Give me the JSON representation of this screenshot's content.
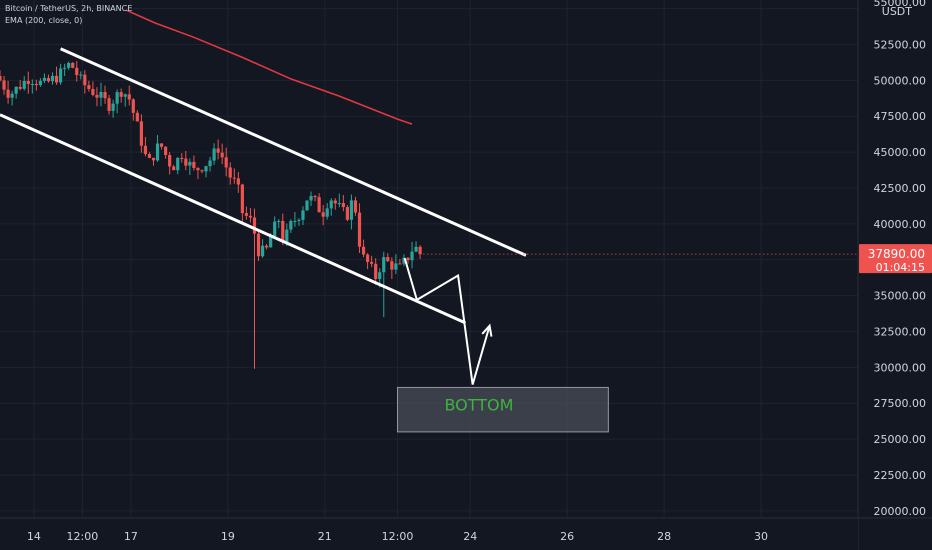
{
  "header": {
    "symbol_line": "Bitcoin / TetherUS, 2h, BINANCE",
    "indicator_line": "EMA (200, close, 0)"
  },
  "price_scale": {
    "currency": "USDT",
    "current_price": "37890.00",
    "countdown": "01:04:15"
  },
  "annotation": {
    "label": "BOTTOM"
  },
  "colors": {
    "background": "#131722",
    "grid": "#1f2330",
    "up": "#26a69a",
    "down": "#ef5350",
    "ema": "#e0393e",
    "lines": "#ffffff",
    "bottom_box": "#4a4e58",
    "bottom_text": "#3fb23f",
    "price_tag": "#ef5350"
  },
  "chart_data": {
    "type": "candlestick",
    "title": "Bitcoin / TetherUS, 2h, BINANCE",
    "y_ticks": [
      55000,
      52500,
      50000,
      47500,
      45000,
      42500,
      40000,
      37500,
      35000,
      32500,
      30000,
      27500,
      25000,
      22500,
      20000
    ],
    "y_tick_labels": [
      "55000.00",
      "52500.00",
      "50000.00",
      "47500.00",
      "45000.00",
      "42500.00",
      "40000.00",
      "37500.00",
      "35000.00",
      "32500.00",
      "30000.00",
      "27500.00",
      "25000.00",
      "22500.00",
      "20000.00"
    ],
    "ylim": [
      19500,
      55600
    ],
    "x_ticks": [
      {
        "day": 14.0,
        "label": "14"
      },
      {
        "day": 15.0,
        "label": "12:00"
      },
      {
        "day": 16.0,
        "label": "17"
      },
      {
        "day": 18.0,
        "label": "19"
      },
      {
        "day": 20.0,
        "label": "21"
      },
      {
        "day": 21.5,
        "label": "12:00"
      },
      {
        "day": 23.0,
        "label": "24"
      },
      {
        "day": 25.0,
        "label": "26"
      },
      {
        "day": 27.0,
        "label": "28"
      },
      {
        "day": 29.0,
        "label": "30"
      }
    ],
    "xlim": [
      13.3,
      31.0
    ],
    "candle_days": [
      13.3,
      21.95
    ],
    "candle_anchors": [
      [
        13.3,
        50000
      ],
      [
        13.5,
        49000
      ],
      [
        13.9,
        50200
      ],
      [
        14.2,
        49700
      ],
      [
        14.5,
        50300
      ],
      [
        14.75,
        51200
      ],
      [
        15.0,
        49800
      ],
      [
        15.3,
        49000
      ],
      [
        15.55,
        48300
      ],
      [
        15.8,
        49300
      ],
      [
        15.95,
        48900
      ],
      [
        16.1,
        47200
      ],
      [
        16.35,
        44100
      ],
      [
        16.6,
        45600
      ],
      [
        16.85,
        43900
      ],
      [
        17.05,
        44900
      ],
      [
        17.3,
        43700
      ],
      [
        17.6,
        44300
      ],
      [
        17.8,
        45300
      ],
      [
        17.95,
        44100
      ],
      [
        18.05,
        43300
      ],
      [
        18.2,
        42600
      ],
      [
        18.3,
        40800
      ],
      [
        18.5,
        40100
      ],
      [
        18.65,
        37900
      ],
      [
        18.8,
        38200
      ],
      [
        18.9,
        39300
      ],
      [
        19.05,
        40300
      ],
      [
        19.15,
        38700
      ],
      [
        19.3,
        39900
      ],
      [
        19.5,
        40800
      ],
      [
        19.65,
        41900
      ],
      [
        19.8,
        41500
      ],
      [
        19.95,
        40700
      ],
      [
        20.1,
        41900
      ],
      [
        20.25,
        41300
      ],
      [
        20.45,
        40500
      ],
      [
        20.6,
        41900
      ],
      [
        20.75,
        37800
      ],
      [
        20.9,
        37200
      ],
      [
        21.05,
        36300
      ],
      [
        21.2,
        37500
      ],
      [
        21.4,
        37100
      ],
      [
        21.55,
        36900
      ],
      [
        21.7,
        37600
      ],
      [
        21.85,
        38500
      ],
      [
        21.95,
        37890
      ]
    ],
    "ema": {
      "name": "EMA (200, close, 0)",
      "points": [
        [
          15.9,
          54900
        ],
        [
          16.5,
          54000
        ],
        [
          17.3,
          53000
        ],
        [
          18.3,
          51600
        ],
        [
          19.3,
          50100
        ],
        [
          20.3,
          48900
        ],
        [
          20.9,
          48100
        ],
        [
          21.5,
          47300
        ],
        [
          21.8,
          46950
        ]
      ]
    },
    "channel_upper": [
      [
        14.55,
        52200
      ],
      [
        24.15,
        37800
      ]
    ],
    "channel_lower": [
      [
        13.3,
        47600
      ],
      [
        22.9,
        33100
      ]
    ],
    "path_arrow": [
      [
        21.65,
        37600
      ],
      [
        21.9,
        34700
      ],
      [
        22.75,
        36400
      ],
      [
        23.05,
        28800
      ],
      [
        23.4,
        32900
      ]
    ],
    "bottom_zone": {
      "x0": 21.5,
      "x1": 25.85,
      "y_high": 28600,
      "y_low": 25500
    }
  }
}
